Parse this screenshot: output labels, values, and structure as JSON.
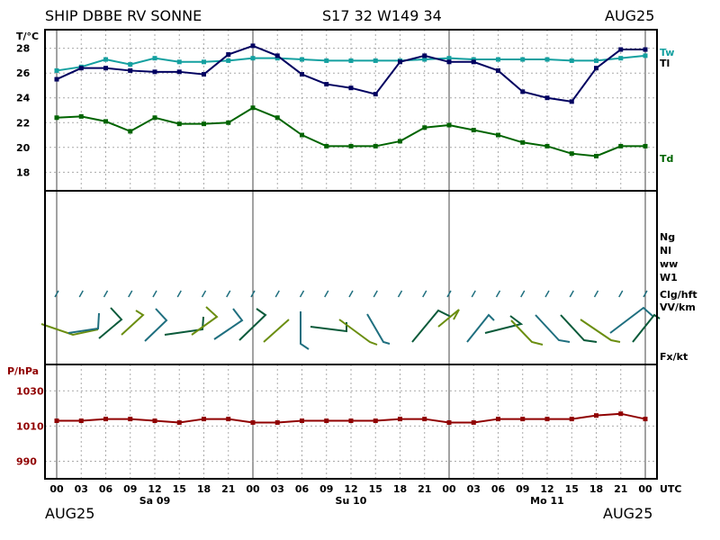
{
  "header": {
    "station": "SHIP DBBE RV SONNE",
    "position": "S17 32 W149 34",
    "month": "AUG25"
  },
  "footer": {
    "left": "AUG25",
    "right": "AUG25"
  },
  "colors": {
    "tw": "#14a0a0",
    "tl": "#000060",
    "td": "#006400",
    "pressure": "#900000",
    "wind": [
      "#6b8e10",
      "#1f6f7f",
      "#0a5a3a"
    ],
    "grid": "#888888"
  },
  "chart_data": [
    {
      "type": "line",
      "title": "",
      "ylabel": "T/°C",
      "ylim": [
        16.5,
        29.5
      ],
      "yticks": [
        18,
        20,
        22,
        24,
        26,
        28
      ],
      "x": [
        "00",
        "03",
        "06",
        "09",
        "12",
        "15",
        "18",
        "21",
        "00",
        "03",
        "06",
        "09",
        "12",
        "15",
        "18",
        "21",
        "00",
        "03",
        "06",
        "09",
        "12",
        "15",
        "18",
        "21",
        "00"
      ],
      "series": [
        {
          "name": "Tw",
          "values": [
            26.2,
            26.5,
            27.1,
            26.7,
            27.2,
            26.9,
            26.9,
            27.0,
            27.2,
            27.2,
            27.1,
            27.0,
            27.0,
            27.0,
            27.0,
            27.1,
            27.2,
            27.1,
            27.1,
            27.1,
            27.1,
            27.0,
            27.0,
            27.2,
            27.4
          ]
        },
        {
          "name": "Tl",
          "values": [
            25.5,
            26.4,
            26.4,
            26.2,
            26.1,
            26.1,
            25.9,
            27.5,
            28.2,
            27.4,
            25.9,
            25.1,
            24.8,
            24.3,
            26.9,
            27.4,
            26.9,
            26.9,
            26.2,
            24.5,
            24.0,
            23.7,
            26.4,
            27.9,
            27.9
          ]
        },
        {
          "name": "Td",
          "values": [
            22.4,
            22.5,
            22.1,
            21.3,
            22.4,
            21.9,
            21.9,
            22.0,
            23.2,
            22.4,
            21.0,
            20.1,
            20.1,
            20.1,
            20.5,
            21.6,
            21.8,
            21.4,
            21.0,
            20.4,
            20.1,
            19.5,
            19.3,
            20.1,
            20.1
          ]
        }
      ]
    },
    {
      "type": "wind-barb",
      "labels": [
        "Ng",
        "Nl",
        "ww",
        "W1",
        "Clg/hft",
        "VV/km",
        "Fx/kt"
      ],
      "x": [
        "00",
        "03",
        "06",
        "09",
        "12",
        "15",
        "18",
        "21",
        "00",
        "03",
        "06",
        "09",
        "12",
        "15",
        "18",
        "21",
        "00",
        "03",
        "06",
        "09",
        "12",
        "15",
        "18",
        "21",
        "00"
      ]
    },
    {
      "type": "line",
      "title": "",
      "ylabel": "P/hPa",
      "ylim": [
        980,
        1045
      ],
      "yticks": [
        990,
        1010,
        1030
      ],
      "x": [
        "00",
        "03",
        "06",
        "09",
        "12",
        "15",
        "18",
        "21",
        "00",
        "03",
        "06",
        "09",
        "12",
        "15",
        "18",
        "21",
        "00",
        "03",
        "06",
        "09",
        "12",
        "15",
        "18",
        "21",
        "00"
      ],
      "series": [
        {
          "name": "P",
          "values": [
            1013,
            1013,
            1014,
            1014,
            1013,
            1012,
            1014,
            1014,
            1012,
            1012,
            1013,
            1013,
            1013,
            1013,
            1014,
            1014,
            1012,
            1012,
            1014,
            1014,
            1014,
            1014,
            1016,
            1017,
            1014
          ]
        }
      ]
    }
  ],
  "xaxis": {
    "ticks": [
      "00",
      "03",
      "06",
      "09",
      "12",
      "15",
      "18",
      "21",
      "00",
      "03",
      "06",
      "09",
      "12",
      "15",
      "18",
      "21",
      "00",
      "03",
      "06",
      "09",
      "12",
      "15",
      "18",
      "21",
      "00"
    ],
    "unit": "UTC",
    "days": [
      {
        "label": "Sa 09",
        "at": 4
      },
      {
        "label": "Su 10",
        "at": 12
      },
      {
        "label": "Mo 11",
        "at": 20
      }
    ]
  }
}
